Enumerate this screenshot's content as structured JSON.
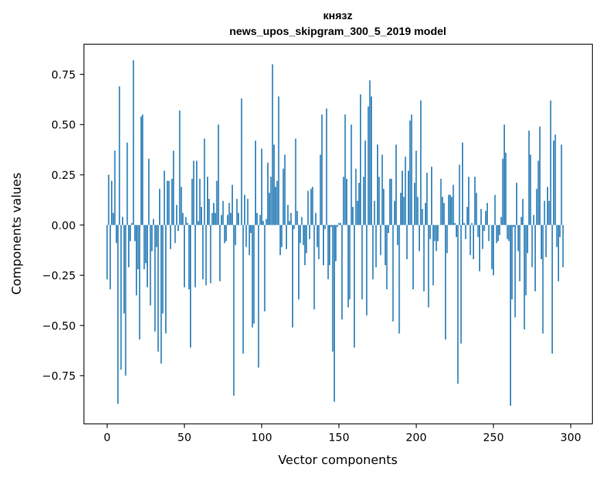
{
  "chart_data": {
    "type": "bar",
    "title": "князz",
    "subtitle": "news_upos_skipgram_300_5_2019 model",
    "xlabel": "Vector components",
    "ylabel": "Components values",
    "xlim": [
      -15,
      314
    ],
    "ylim": [
      -0.99,
      0.9
    ],
    "xticks": [
      0,
      50,
      100,
      150,
      200,
      250,
      300
    ],
    "yticks": [
      -0.75,
      -0.5,
      -0.25,
      0.0,
      0.25,
      0.5,
      0.75
    ],
    "ytick_labels": [
      "−0.75",
      "−0.50",
      "−0.25",
      "0.00",
      "0.25",
      "0.50",
      "0.75"
    ],
    "bar_color": "#1f77b4",
    "x_start": 0,
    "values": [
      -0.27,
      0.25,
      -0.32,
      0.22,
      0.06,
      0.37,
      -0.09,
      -0.89,
      0.69,
      -0.72,
      0.04,
      -0.44,
      -0.75,
      0.41,
      -0.21,
      -0.08,
      0.01,
      0.82,
      -0.08,
      -0.35,
      -0.22,
      -0.57,
      0.54,
      0.55,
      -0.22,
      -0.19,
      -0.31,
      0.33,
      -0.4,
      -0.13,
      0.03,
      -0.53,
      -0.11,
      -0.63,
      0.18,
      -0.69,
      -0.44,
      0.27,
      -0.54,
      0.22,
      0.22,
      -0.12,
      0.23,
      0.37,
      -0.09,
      0.1,
      -0.03,
      0.57,
      0.19,
      0.06,
      -0.31,
      0.04,
      0.01,
      -0.32,
      -0.61,
      0.23,
      0.32,
      -0.31,
      0.32,
      0.02,
      0.23,
      0.09,
      -0.27,
      0.43,
      -0.3,
      0.24,
      0.13,
      -0.29,
      0.06,
      0.11,
      0.06,
      0.22,
      0.5,
      -0.28,
      0.05,
      0.12,
      -0.09,
      -0.08,
      0.05,
      0.11,
      0.06,
      0.2,
      -0.85,
      -0.1,
      0.13,
      0.06,
      0.0,
      0.63,
      -0.64,
      0.15,
      -0.11,
      0.13,
      -0.15,
      -0.04,
      -0.51,
      -0.49,
      0.42,
      0.06,
      -0.71,
      0.05,
      0.38,
      0.02,
      -0.43,
      0.03,
      0.31,
      0.16,
      0.24,
      0.8,
      0.4,
      0.19,
      0.22,
      0.64,
      -0.15,
      -0.11,
      0.28,
      0.35,
      -0.12,
      0.1,
      0.02,
      0.06,
      -0.51,
      -0.02,
      0.43,
      0.07,
      -0.37,
      -0.09,
      0.04,
      -0.1,
      -0.2,
      -0.14,
      0.17,
      -0.07,
      0.18,
      0.19,
      -0.42,
      0.06,
      -0.11,
      -0.17,
      0.35,
      0.55,
      -0.2,
      -0.02,
      0.58,
      -0.27,
      -0.2,
      -0.01,
      -0.63,
      -0.88,
      -0.18,
      -0.01,
      0.01,
      0.01,
      -0.47,
      0.24,
      0.55,
      0.23,
      -0.41,
      -0.37,
      0.5,
      0.09,
      -0.61,
      0.28,
      0.12,
      0.21,
      0.65,
      -0.37,
      0.24,
      0.42,
      -0.45,
      0.59,
      0.72,
      0.64,
      -0.27,
      0.12,
      -0.21,
      0.4,
      0.24,
      -0.15,
      0.35,
      0.18,
      -0.2,
      -0.32,
      -0.04,
      0.23,
      0.23,
      -0.48,
      0.12,
      0.4,
      -0.1,
      -0.54,
      0.16,
      0.27,
      0.14,
      0.34,
      -0.17,
      0.27,
      0.52,
      0.55,
      -0.32,
      0.21,
      0.37,
      0.14,
      -0.13,
      0.62,
      0.08,
      -0.33,
      0.11,
      0.26,
      -0.41,
      -0.07,
      0.29,
      -0.3,
      -0.08,
      -0.13,
      -0.08,
      0.0,
      0.23,
      0.14,
      0.11,
      -0.57,
      -0.14,
      0.15,
      0.15,
      0.14,
      0.2,
      0.01,
      -0.06,
      -0.79,
      0.3,
      -0.59,
      0.41,
      0.01,
      -0.07,
      0.09,
      0.24,
      -0.15,
      0.01,
      -0.17,
      0.24,
      0.16,
      -0.06,
      -0.23,
      0.08,
      -0.12,
      -0.03,
      0.07,
      0.11,
      -0.08,
      0.0,
      -0.22,
      -0.25,
      0.15,
      -0.09,
      -0.08,
      -0.05,
      0.04,
      0.33,
      0.5,
      0.36,
      -0.07,
      -0.08,
      -0.9,
      -0.37,
      -0.01,
      -0.46,
      0.21,
      -0.13,
      -0.28,
      0.04,
      0.13,
      -0.52,
      -0.35,
      -0.14,
      0.47,
      0.35,
      -0.21,
      0.05,
      -0.33,
      0.18,
      0.32,
      0.49,
      -0.17,
      -0.54,
      0.12,
      -0.16,
      0.19,
      0.12,
      0.62,
      -0.64,
      0.42,
      0.45,
      -0.11,
      -0.28,
      -0.06,
      0.4,
      -0.21
    ]
  }
}
